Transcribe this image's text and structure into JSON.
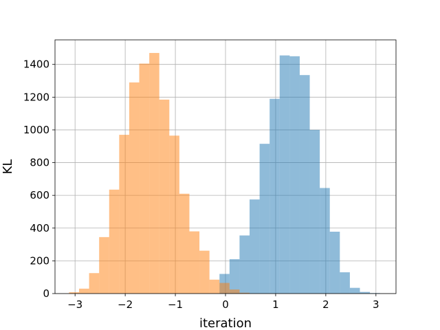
{
  "chart_data": {
    "type": "bar",
    "title": "",
    "xlabel": "iteration",
    "ylabel": "KL",
    "xlim": [
      -3.4,
      3.4
    ],
    "ylim": [
      0,
      1550
    ],
    "grid": true,
    "xticks": [
      -3,
      -2,
      -1,
      0,
      1,
      2,
      3
    ],
    "xtick_labels": [
      "−3",
      "−2",
      "−1",
      "0",
      "1",
      "2",
      "3"
    ],
    "yticks": [
      0,
      200,
      400,
      600,
      800,
      1000,
      1200,
      1400
    ],
    "ytick_labels": [
      "0",
      "200",
      "400",
      "600",
      "800",
      "1000",
      "1200",
      "1400"
    ],
    "series": [
      {
        "color": "#1f77b4",
        "opacity": 0.5,
        "bin_edges": [
          -0.12,
          0.08,
          0.28,
          0.48,
          0.68,
          0.88,
          1.08,
          1.28,
          1.48,
          1.68,
          1.88,
          2.08,
          2.28,
          2.48,
          2.68,
          2.88,
          3.08
        ],
        "values": [
          120,
          210,
          355,
          575,
          915,
          1190,
          1455,
          1450,
          1335,
          1000,
          645,
          378,
          130,
          35,
          10,
          3
        ]
      },
      {
        "color": "#ff7f0e",
        "opacity": 0.5,
        "bin_edges": [
          -3.12,
          -2.92,
          -2.72,
          -2.52,
          -2.32,
          -2.12,
          -1.92,
          -1.72,
          -1.52,
          -1.32,
          -1.12,
          -0.92,
          -0.72,
          -0.52,
          -0.32,
          -0.12,
          0.08,
          0.28,
          0.48
        ],
        "values": [
          8,
          30,
          125,
          345,
          635,
          970,
          1290,
          1405,
          1470,
          1185,
          965,
          610,
          380,
          262,
          85,
          65,
          25,
          5
        ]
      }
    ]
  }
}
